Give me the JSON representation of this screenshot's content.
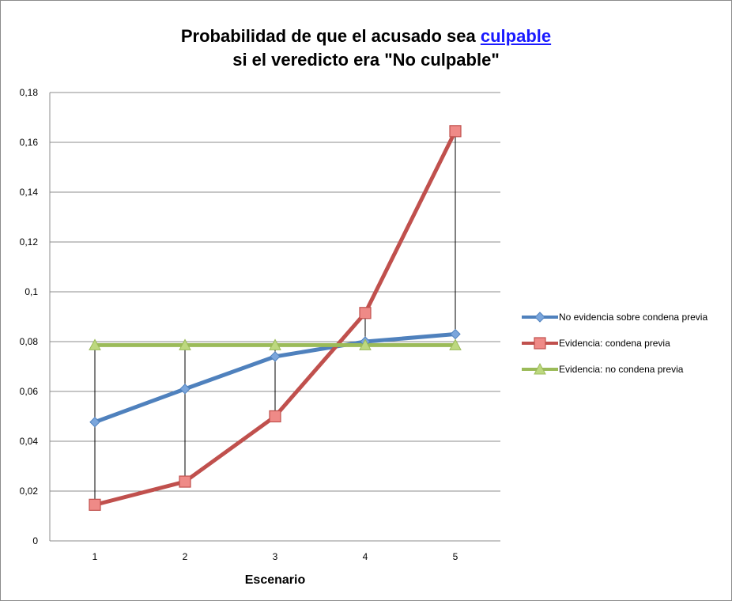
{
  "chart_data": {
    "type": "line",
    "title_line1_pre": "Probabilidad de que el acusado sea ",
    "title_link": "culpable",
    "title_line2": "si el veredicto era \"No culpable\"",
    "xlabel": "Escenario",
    "ylabel": "",
    "categories": [
      "1",
      "2",
      "3",
      "4",
      "5"
    ],
    "ylim": [
      0,
      0.18
    ],
    "yticks": [
      0,
      0.02,
      0.04,
      0.06,
      0.08,
      0.1,
      0.12,
      0.14,
      0.16,
      0.18
    ],
    "ytick_labels": [
      "0",
      "0,02",
      "0,04",
      "0,06",
      "0,08",
      "0,1",
      "0,12",
      "0,14",
      "0,16",
      "0,18"
    ],
    "grid": true,
    "legend": "right",
    "drop_lines": true,
    "series": [
      {
        "name": "No evidencia sobre condena previa",
        "color": "#4f81bd",
        "marker": "diamond",
        "values": [
          0.0477,
          0.061,
          0.074,
          0.08,
          0.083
        ]
      },
      {
        "name": "Evidencia: condena previa",
        "color": "#c0504d",
        "marker": "square",
        "values": [
          0.0145,
          0.0238,
          0.05,
          0.0915,
          0.1645
        ]
      },
      {
        "name": "Evidencia: no condena previa",
        "color": "#9bbb59",
        "marker": "triangle",
        "values": [
          0.0786,
          0.0786,
          0.0786,
          0.0786,
          0.0786
        ]
      }
    ]
  }
}
